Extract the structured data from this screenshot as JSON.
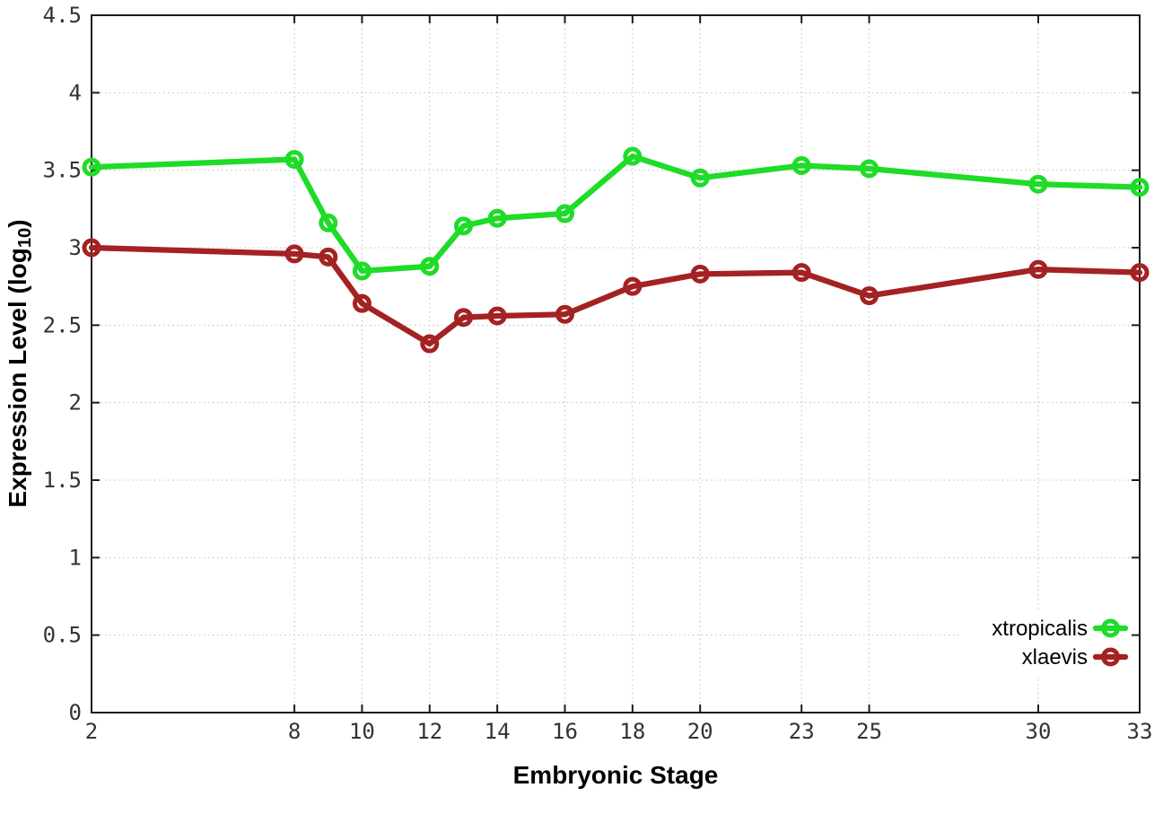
{
  "chart_data": {
    "type": "line",
    "title": "",
    "xlabel": "Embryonic Stage",
    "ylabel": "Expression Level (log10)",
    "ylabel_parts": {
      "main": "Expression Level (log",
      "sub": "10",
      "end": ")"
    },
    "xlim": [
      2,
      33
    ],
    "ylim": [
      0,
      4.5
    ],
    "grid": true,
    "x_ticks": [
      2,
      8,
      10,
      12,
      14,
      16,
      18,
      20,
      23,
      25,
      30,
      33
    ],
    "x_tick_labels": [
      "2",
      "8",
      "10",
      "12",
      "14",
      "16",
      "18",
      "20",
      "23",
      "25",
      "30",
      "33"
    ],
    "y_ticks": [
      0,
      0.5,
      1,
      1.5,
      2,
      2.5,
      3,
      3.5,
      4,
      4.5
    ],
    "y_tick_labels": [
      "0",
      "0.5",
      "1",
      "1.5",
      "2",
      "2.5",
      "3",
      "3.5",
      "4",
      "4.5"
    ],
    "x": [
      2,
      8,
      9,
      10,
      12,
      13,
      14,
      16,
      18,
      20,
      23,
      25,
      30,
      33
    ],
    "series": [
      {
        "name": "xtropicalis",
        "color": "#1edc28",
        "marker": "open-circle",
        "values": [
          3.52,
          3.57,
          3.16,
          2.85,
          2.88,
          3.14,
          3.19,
          3.22,
          3.59,
          3.45,
          3.53,
          3.51,
          3.41,
          3.39
        ]
      },
      {
        "name": "xlaevis",
        "color": "#a42222",
        "marker": "open-circle",
        "values": [
          3.0,
          2.96,
          2.94,
          2.64,
          2.38,
          2.55,
          2.56,
          2.57,
          2.75,
          2.83,
          2.84,
          2.69,
          2.86,
          2.84
        ]
      }
    ],
    "legend": {
      "position": "bottom-right-inside",
      "entries": [
        "xtropicalis",
        "xlaevis"
      ]
    }
  },
  "colors": {
    "background": "#ffffff",
    "axis": "#1c1c1c",
    "grid": "#bfbfbf",
    "tick_label": "#333333",
    "title_text": "#000000",
    "xtropicalis": "#1edc28",
    "xlaevis": "#a42222"
  }
}
